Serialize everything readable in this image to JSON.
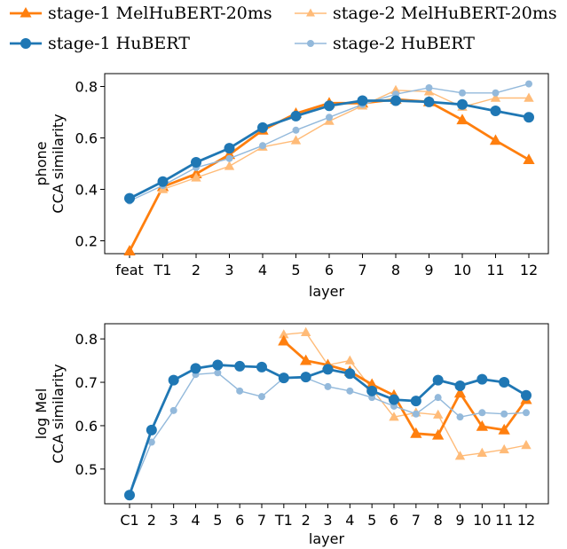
{
  "legend": {
    "s1_mel": "stage-1 MelHuBERT-20ms",
    "s2_mel": "stage-2 MelHuBERT-20ms",
    "s1_hub": "stage-1 HuBERT",
    "s2_hub": "stage-2 HuBERT"
  },
  "colors": {
    "s1_mel": "#ff7f0e",
    "s2_mel": "#ffbb78",
    "s1_hub": "#1f77b4",
    "s2_hub": "#93b9db"
  },
  "chart_data": [
    {
      "type": "line",
      "xlabel": "layer",
      "ylabel": [
        "phone",
        "CCA similarity"
      ],
      "categories": [
        "feat",
        "T1",
        "2",
        "3",
        "4",
        "5",
        "6",
        "7",
        "8",
        "9",
        "10",
        "11",
        "12"
      ],
      "ylim": [
        0.15,
        0.85
      ],
      "yticks": [
        0.2,
        0.4,
        0.6,
        0.8
      ],
      "series": [
        {
          "key": "s1_mel",
          "name": "stage-1 MelHuBERT-20ms",
          "marker": "triangle",
          "width": 2.8,
          "size": 6,
          "values": [
            0.16,
            0.41,
            0.46,
            0.535,
            0.63,
            0.695,
            0.735,
            0.735,
            0.75,
            0.74,
            0.67,
            0.59,
            0.515
          ]
        },
        {
          "key": "s2_mel",
          "name": "stage-2 MelHuBERT-20ms",
          "marker": "triangle",
          "width": 1.4,
          "size": 5,
          "values": [
            null,
            0.4,
            0.445,
            0.49,
            0.565,
            0.59,
            0.665,
            0.725,
            0.785,
            0.78,
            0.72,
            0.755,
            0.755
          ]
        },
        {
          "key": "s2_hub",
          "name": "stage-2 HuBERT",
          "marker": "circle",
          "width": 1.4,
          "size": 4,
          "values": [
            0.355,
            0.415,
            0.485,
            0.52,
            0.57,
            0.63,
            0.68,
            0.73,
            0.77,
            0.795,
            0.775,
            0.775,
            0.81
          ]
        },
        {
          "key": "s1_hub",
          "name": "stage-1 HuBERT",
          "marker": "circle",
          "width": 2.8,
          "size": 6,
          "values": [
            0.365,
            0.43,
            0.505,
            0.56,
            0.64,
            0.685,
            0.725,
            0.745,
            0.745,
            0.74,
            0.73,
            0.705,
            0.68
          ]
        }
      ]
    },
    {
      "type": "line",
      "xlabel": "layer",
      "ylabel": [
        "log Mel",
        "CCA similarity"
      ],
      "categories": [
        "C1",
        "2",
        "3",
        "4",
        "5",
        "6",
        "7",
        "T1",
        "2",
        "3",
        "4",
        "5",
        "6",
        "7",
        "8",
        "9",
        "10",
        "11",
        "12"
      ],
      "ylim": [
        0.42,
        0.835
      ],
      "yticks": [
        0.5,
        0.6,
        0.7,
        0.8
      ],
      "series": [
        {
          "key": "s2_mel",
          "name": "stage-2 MelHuBERT-20ms",
          "marker": "triangle",
          "width": 1.4,
          "size": 5,
          "values": [
            null,
            null,
            null,
            null,
            null,
            null,
            null,
            0.81,
            0.815,
            0.74,
            0.75,
            0.685,
            0.62,
            0.63,
            0.625,
            0.53,
            0.537,
            0.545,
            0.555
          ]
        },
        {
          "key": "s1_mel",
          "name": "stage-1 MelHuBERT-20ms",
          "marker": "triangle",
          "width": 2.8,
          "size": 6,
          "values": [
            null,
            null,
            null,
            null,
            null,
            null,
            null,
            0.795,
            0.75,
            0.74,
            0.725,
            0.695,
            0.67,
            0.582,
            0.578,
            0.675,
            0.598,
            0.59,
            0.66
          ]
        },
        {
          "key": "s2_hub",
          "name": "stage-2 HuBERT",
          "marker": "circle",
          "width": 1.4,
          "size": 4,
          "values": [
            0.44,
            0.562,
            0.635,
            0.718,
            0.722,
            0.68,
            0.667,
            0.71,
            0.71,
            0.69,
            0.68,
            0.665,
            0.645,
            0.627,
            0.665,
            0.62,
            0.63,
            0.627,
            0.63
          ]
        },
        {
          "key": "s1_hub",
          "name": "stage-1 HuBERT",
          "marker": "circle",
          "width": 2.8,
          "size": 6,
          "values": [
            0.44,
            0.59,
            0.705,
            0.732,
            0.74,
            0.737,
            0.735,
            0.71,
            0.712,
            0.73,
            0.72,
            0.68,
            0.66,
            0.657,
            0.705,
            0.692,
            0.707,
            0.7,
            0.67
          ]
        }
      ]
    }
  ]
}
